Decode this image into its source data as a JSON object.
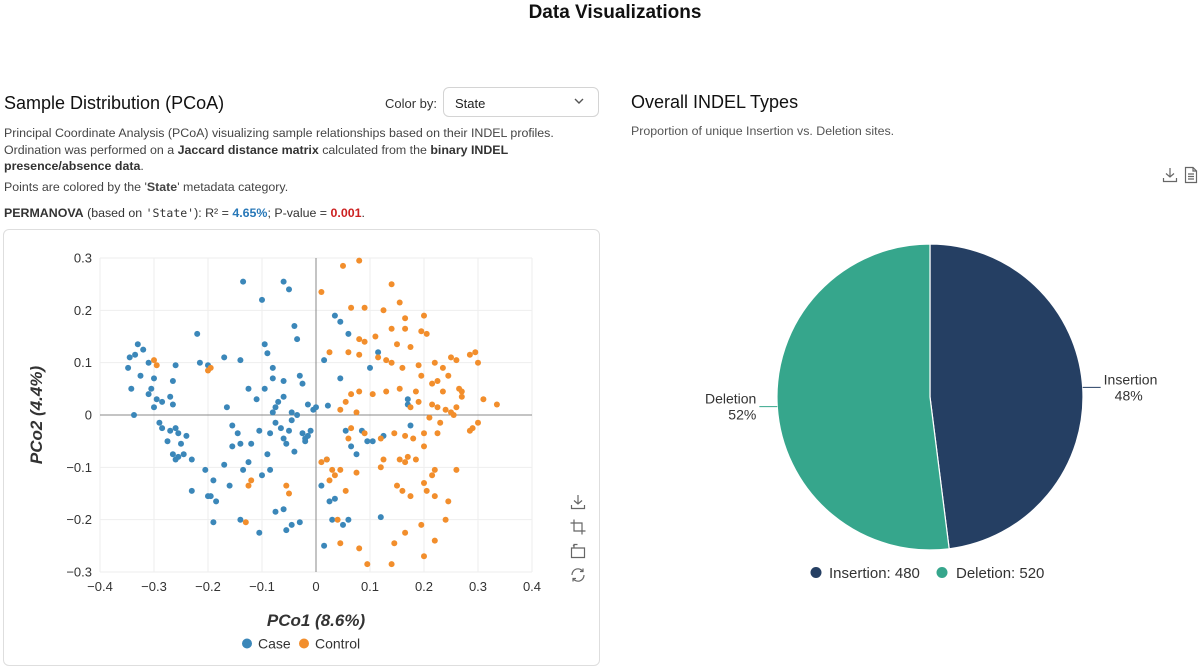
{
  "page_title": "Data Visualizations",
  "pcoa": {
    "title": "Sample Distribution (PCoA)",
    "color_by_label": "Color by:",
    "color_by_value": "State",
    "desc_intro": "Principal Coordinate Analysis (PCoA) visualizing sample relationships based on their INDEL profiles. Ordination was performed on a ",
    "desc_bold1": "Jaccard distance matrix",
    "desc_mid": " calculated from the ",
    "desc_bold2": "binary INDEL presence/absence data",
    "desc_end": ".",
    "colored_pre": "Points are colored by the '",
    "colored_var": "State",
    "colored_post": "' metadata category.",
    "perm_label": "PERMANOVA",
    "perm_based_pre": " (based on ",
    "perm_code": "'State'",
    "perm_based_post": "): R² = ",
    "perm_r2": "4.65%",
    "perm_sep": "; P-value = ",
    "perm_pvalue": "0.001",
    "perm_end": ".",
    "colors": {
      "case": "#3b87b9",
      "control": "#f28e2c"
    }
  },
  "indel": {
    "title": "Overall INDEL Types",
    "desc": "Proportion of unique Insertion vs. Deletion sites.",
    "colors": {
      "insertion": "#253f63",
      "deletion": "#36a68c"
    }
  },
  "chart_data": [
    {
      "type": "scatter",
      "title": "",
      "xlabel": "PCo1 (8.6%)",
      "ylabel": "PCo2 (4.4%)",
      "xlim": [
        -0.4,
        0.4
      ],
      "ylim": [
        -0.3,
        0.3
      ],
      "xticks": [
        "−0.4",
        "−0.3",
        "−0.2",
        "−0.1",
        "0",
        "0.1",
        "0.2",
        "0.3",
        "0.4"
      ],
      "yticks": [
        "0.3",
        "0.2",
        "0.1",
        "0",
        "−0.1",
        "−0.2",
        "−0.3"
      ],
      "legend": [
        "Case",
        "Control"
      ],
      "series": [
        {
          "name": "Case",
          "points": [
            [
              -0.33,
              0.135
            ],
            [
              -0.32,
              0.125
            ],
            [
              -0.345,
              0.11
            ],
            [
              -0.335,
              0.115
            ],
            [
              -0.31,
              0.1
            ],
            [
              -0.348,
              0.09
            ],
            [
              -0.325,
              0.075
            ],
            [
              -0.3,
              0.07
            ],
            [
              -0.342,
              0.05
            ],
            [
              -0.337,
              0.0
            ],
            [
              -0.31,
              0.04
            ],
            [
              -0.295,
              0.03
            ],
            [
              -0.285,
              0.025
            ],
            [
              -0.27,
              0.035
            ],
            [
              -0.265,
              0.02
            ],
            [
              -0.29,
              -0.015
            ],
            [
              -0.285,
              -0.025
            ],
            [
              -0.27,
              -0.03
            ],
            [
              -0.26,
              -0.025
            ],
            [
              -0.255,
              -0.035
            ],
            [
              -0.275,
              -0.05
            ],
            [
              -0.265,
              -0.075
            ],
            [
              -0.26,
              -0.085
            ],
            [
              -0.255,
              -0.08
            ],
            [
              -0.23,
              -0.085
            ],
            [
              -0.205,
              -0.105
            ],
            [
              -0.19,
              -0.125
            ],
            [
              -0.195,
              -0.155
            ],
            [
              -0.185,
              -0.165
            ],
            [
              -0.22,
              0.155
            ],
            [
              -0.215,
              0.1
            ],
            [
              -0.2,
              0.095
            ],
            [
              -0.17,
              0.11
            ],
            [
              -0.165,
              0.015
            ],
            [
              -0.155,
              -0.02
            ],
            [
              -0.145,
              -0.035
            ],
            [
              -0.14,
              -0.055
            ],
            [
              -0.135,
              -0.105
            ],
            [
              -0.125,
              -0.09
            ],
            [
              -0.14,
              -0.2
            ],
            [
              -0.105,
              -0.225
            ],
            [
              -0.1,
              -0.115
            ],
            [
              -0.09,
              -0.075
            ],
            [
              -0.085,
              -0.035
            ],
            [
              -0.075,
              -0.015
            ],
            [
              -0.08,
              0.005
            ],
            [
              -0.075,
              0.015
            ],
            [
              -0.07,
              0.025
            ],
            [
              -0.065,
              -0.025
            ],
            [
              -0.06,
              -0.045
            ],
            [
              -0.055,
              -0.055
            ],
            [
              -0.05,
              -0.03
            ],
            [
              -0.045,
              -0.01
            ],
            [
              -0.045,
              0.005
            ],
            [
              -0.04,
              -0.07
            ],
            [
              -0.035,
              0.0
            ],
            [
              -0.03,
              0.075
            ],
            [
              -0.025,
              -0.035
            ],
            [
              -0.02,
              -0.045
            ],
            [
              -0.02,
              -0.05
            ],
            [
              -0.015,
              -0.04
            ],
            [
              -0.01,
              -0.03
            ],
            [
              -0.005,
              0.01
            ],
            [
              0.01,
              -0.135
            ],
            [
              0.015,
              0.105
            ],
            [
              0.02,
              -0.085
            ],
            [
              0.022,
              0.018
            ],
            [
              0.025,
              -0.165
            ],
            [
              0.03,
              -0.2
            ],
            [
              0.035,
              -0.16
            ],
            [
              0.015,
              -0.25
            ],
            [
              0.05,
              -0.21
            ],
            [
              0.055,
              -0.03
            ],
            [
              0.06,
              -0.2
            ],
            [
              0.065,
              -0.06
            ],
            [
              0.075,
              -0.075
            ],
            [
              0.085,
              -0.03
            ],
            [
              0.095,
              -0.05
            ],
            [
              0.105,
              -0.05
            ],
            [
              0.12,
              -0.195
            ],
            [
              0.125,
              -0.04
            ],
            [
              0.17,
              0.03
            ],
            [
              0.17,
              0.02
            ],
            [
              0.175,
              -0.02
            ],
            [
              0.035,
              0.19
            ],
            [
              0.045,
              0.178
            ],
            [
              0.06,
              0.155
            ],
            [
              0.1,
              0.09
            ],
            [
              0.115,
              0.12
            ],
            [
              -0.095,
              0.135
            ],
            [
              -0.09,
              0.118
            ],
            [
              -0.08,
              0.09
            ],
            [
              -0.06,
              0.255
            ],
            [
              -0.05,
              0.24
            ],
            [
              -0.04,
              0.17
            ],
            [
              -0.035,
              0.145
            ],
            [
              -0.025,
              0.06
            ],
            [
              -0.015,
              0.02
            ],
            [
              -0.1,
              0.22
            ],
            [
              -0.135,
              0.255
            ],
            [
              -0.085,
              -0.105
            ],
            [
              -0.075,
              -0.185
            ],
            [
              -0.06,
              -0.18
            ],
            [
              -0.055,
              -0.22
            ],
            [
              -0.045,
              -0.21
            ],
            [
              -0.03,
              -0.205
            ],
            [
              -0.16,
              -0.135
            ],
            [
              -0.17,
              -0.095
            ],
            [
              -0.19,
              -0.205
            ],
            [
              -0.2,
              -0.155
            ],
            [
              -0.23,
              -0.145
            ],
            [
              -0.25,
              -0.055
            ],
            [
              -0.24,
              -0.04
            ],
            [
              -0.245,
              -0.075
            ],
            [
              -0.3,
              0.015
            ],
            [
              -0.305,
              0.05
            ],
            [
              -0.26,
              0.095
            ],
            [
              -0.265,
              0.065
            ],
            [
              -0.14,
              0.105
            ],
            [
              -0.125,
              0.05
            ],
            [
              -0.11,
              0.03
            ],
            [
              -0.095,
              0.05
            ],
            [
              -0.08,
              0.07
            ],
            [
              -0.06,
              0.065
            ],
            [
              -0.06,
              0.035
            ],
            [
              -0.155,
              -0.06
            ],
            [
              -0.12,
              -0.055
            ],
            [
              -0.105,
              -0.03
            ],
            [
              0.045,
              0.07
            ],
            [
              0.0,
              0.015
            ]
          ]
        },
        {
          "name": "Control",
          "points": [
            [
              0.05,
              0.285
            ],
            [
              0.08,
              0.295
            ],
            [
              0.14,
              0.25
            ],
            [
              0.01,
              0.235
            ],
            [
              0.065,
              0.205
            ],
            [
              0.09,
              0.205
            ],
            [
              0.125,
              0.2
            ],
            [
              0.155,
              0.215
            ],
            [
              0.165,
              0.185
            ],
            [
              0.2,
              0.19
            ],
            [
              0.14,
              0.165
            ],
            [
              0.165,
              0.165
            ],
            [
              0.195,
              0.16
            ],
            [
              0.205,
              0.155
            ],
            [
              0.11,
              0.15
            ],
            [
              0.09,
              0.14
            ],
            [
              0.08,
              0.145
            ],
            [
              0.15,
              0.135
            ],
            [
              0.175,
              0.13
            ],
            [
              0.025,
              0.12
            ],
            [
              0.06,
              0.12
            ],
            [
              0.08,
              0.115
            ],
            [
              0.115,
              0.11
            ],
            [
              0.13,
              0.105
            ],
            [
              0.14,
              0.1
            ],
            [
              0.16,
              0.09
            ],
            [
              0.19,
              0.095
            ],
            [
              0.22,
              0.1
            ],
            [
              0.235,
              0.09
            ],
            [
              0.25,
              0.11
            ],
            [
              0.26,
              0.105
            ],
            [
              0.285,
              0.115
            ],
            [
              0.295,
              0.12
            ],
            [
              0.3,
              0.1
            ],
            [
              0.245,
              0.075
            ],
            [
              0.225,
              0.065
            ],
            [
              0.215,
              0.06
            ],
            [
              0.195,
              0.075
            ],
            [
              0.185,
              0.045
            ],
            [
              0.155,
              0.05
            ],
            [
              0.13,
              0.045
            ],
            [
              0.105,
              0.04
            ],
            [
              0.08,
              0.045
            ],
            [
              0.065,
              0.04
            ],
            [
              0.055,
              0.025
            ],
            [
              0.045,
              0.01
            ],
            [
              0.075,
              0.005
            ],
            [
              0.065,
              -0.025
            ],
            [
              0.06,
              -0.045
            ],
            [
              0.09,
              -0.035
            ],
            [
              0.12,
              -0.045
            ],
            [
              0.145,
              -0.035
            ],
            [
              0.165,
              -0.04
            ],
            [
              0.18,
              -0.045
            ],
            [
              0.2,
              -0.035
            ],
            [
              0.225,
              -0.035
            ],
            [
              0.24,
              0.01
            ],
            [
              0.26,
              0.015
            ],
            [
              0.27,
              0.035
            ],
            [
              0.27,
              0.045
            ],
            [
              0.265,
              0.05
            ],
            [
              0.235,
              0.045
            ],
            [
              0.225,
              0.015
            ],
            [
              0.215,
              0.02
            ],
            [
              0.19,
              0.025
            ],
            [
              0.175,
              0.015
            ],
            [
              0.21,
              -0.005
            ],
            [
              0.23,
              -0.015
            ],
            [
              0.25,
              0.005
            ],
            [
              0.255,
              0.0
            ],
            [
              0.29,
              -0.025
            ],
            [
              0.285,
              -0.03
            ],
            [
              0.31,
              0.03
            ],
            [
              0.335,
              0.02
            ],
            [
              0.3,
              -0.015
            ],
            [
              0.2,
              -0.06
            ],
            [
              0.185,
              -0.085
            ],
            [
              0.17,
              -0.08
            ],
            [
              0.165,
              -0.09
            ],
            [
              0.155,
              -0.085
            ],
            [
              0.125,
              -0.085
            ],
            [
              0.12,
              -0.1
            ],
            [
              0.075,
              -0.11
            ],
            [
              0.045,
              -0.105
            ],
            [
              0.03,
              -0.105
            ],
            [
              0.025,
              -0.125
            ],
            [
              0.055,
              -0.145
            ],
            [
              0.035,
              -0.115
            ],
            [
              0.01,
              -0.09
            ],
            [
              0.02,
              -0.085
            ],
            [
              0.15,
              -0.135
            ],
            [
              0.16,
              -0.145
            ],
            [
              0.175,
              -0.155
            ],
            [
              0.2,
              -0.13
            ],
            [
              0.215,
              -0.115
            ],
            [
              0.22,
              -0.105
            ],
            [
              0.26,
              -0.105
            ],
            [
              0.205,
              -0.145
            ],
            [
              0.22,
              -0.155
            ],
            [
              0.245,
              -0.165
            ],
            [
              0.195,
              -0.21
            ],
            [
              0.165,
              -0.225
            ],
            [
              0.145,
              -0.245
            ],
            [
              0.22,
              -0.24
            ],
            [
              0.24,
              -0.2
            ],
            [
              0.2,
              -0.27
            ],
            [
              0.14,
              -0.285
            ],
            [
              0.095,
              -0.285
            ],
            [
              0.08,
              -0.255
            ],
            [
              0.045,
              -0.245
            ],
            [
              0.04,
              -0.2
            ],
            [
              -0.13,
              -0.205
            ],
            [
              -0.125,
              -0.135
            ],
            [
              -0.12,
              -0.125
            ],
            [
              -0.05,
              -0.15
            ],
            [
              -0.055,
              -0.135
            ],
            [
              -0.3,
              0.105
            ],
            [
              -0.295,
              0.095
            ],
            [
              -0.195,
              0.09
            ],
            [
              -0.2,
              0.085
            ]
          ]
        }
      ]
    },
    {
      "type": "pie",
      "title": "",
      "labels": [
        "Insertion",
        "Deletion"
      ],
      "values": [
        480,
        520
      ],
      "percent_labels": [
        "48%",
        "52%"
      ],
      "legend": [
        "Insertion: 480",
        "Deletion: 520"
      ]
    }
  ]
}
